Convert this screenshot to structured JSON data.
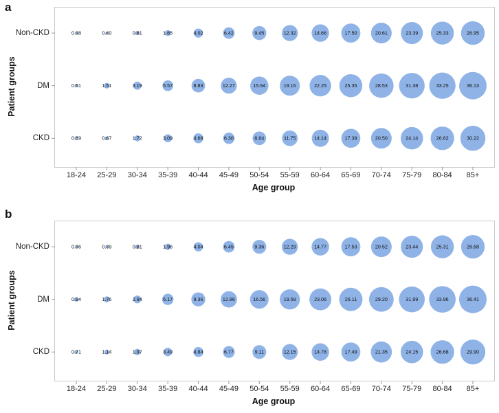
{
  "figure": {
    "bubble_color": "#8FB3E6",
    "axis_border_color": "#c9c9c9",
    "tick_color": "#9a9a9a",
    "label_color": "#111111"
  },
  "chart_data": [
    {
      "type": "bubble",
      "panel_label": "a",
      "xlabel": "Age group",
      "ylabel": "Patient groups",
      "size_encoding": "bubble area proportional to value; value printed at bubble center",
      "categories": [
        "18-24",
        "25-29",
        "30-34",
        "35-39",
        "40-44",
        "45-49",
        "50-54",
        "55-59",
        "60-64",
        "65-69",
        "70-74",
        "75-79",
        "80-84",
        "85+"
      ],
      "series": [
        {
          "name": "Non-CKD",
          "values": [
            "0.38",
            "0.40",
            "0.81",
            "1.65",
            "4.02",
            "6.42",
            "9.45",
            "12.32",
            "14.66",
            "17.50",
            "20.61",
            "23.39",
            "25.33",
            "26.95"
          ]
        },
        {
          "name": "DM",
          "values": [
            "0.51",
            "1.51",
            "3.19",
            "5.57",
            "8.83",
            "12.27",
            "15.94",
            "19.16",
            "22.25",
            "25.35",
            "28.53",
            "31.38",
            "33.25",
            "36.13"
          ]
        },
        {
          "name": "CKD",
          "values": [
            "0.59",
            "0.67",
            "1.72",
            "3.09",
            "4.68",
            "6.30",
            "8.84",
            "11.75",
            "14.14",
            "17.39",
            "20.50",
            "24.14",
            "26.62",
            "30.22"
          ]
        }
      ]
    },
    {
      "type": "bubble",
      "panel_label": "b",
      "xlabel": "Age group",
      "ylabel": "Patient groups",
      "size_encoding": "bubble area proportional to value; value printed at bubble center",
      "categories": [
        "18-24",
        "25-29",
        "30-34",
        "35-39",
        "40-44",
        "45-49",
        "50-54",
        "55-59",
        "60-64",
        "65-69",
        "70-74",
        "75-79",
        "80-84",
        "85+"
      ],
      "series": [
        {
          "name": "Non-CKD",
          "values": [
            "0.36",
            "0.39",
            "0.81",
            "1.96",
            "4.04",
            "6.45",
            "9.36",
            "12.29",
            "14.77",
            "17.53",
            "20.52",
            "23.44",
            "25.31",
            "26.68"
          ]
        },
        {
          "name": "DM",
          "values": [
            "0.94",
            "1.76",
            "2.94",
            "6.17",
            "9.36",
            "12.86",
            "16.56",
            "19.59",
            "23.06",
            "26.11",
            "29.20",
            "31.99",
            "33.96",
            "36.41"
          ]
        },
        {
          "name": "CKD",
          "values": [
            "0.71",
            "1.14",
            "1.97",
            "3.49",
            "4.84",
            "6.77",
            "9.11",
            "12.15",
            "14.78",
            "17.49",
            "21.35",
            "24.15",
            "26.68",
            "29.90"
          ]
        }
      ]
    }
  ]
}
